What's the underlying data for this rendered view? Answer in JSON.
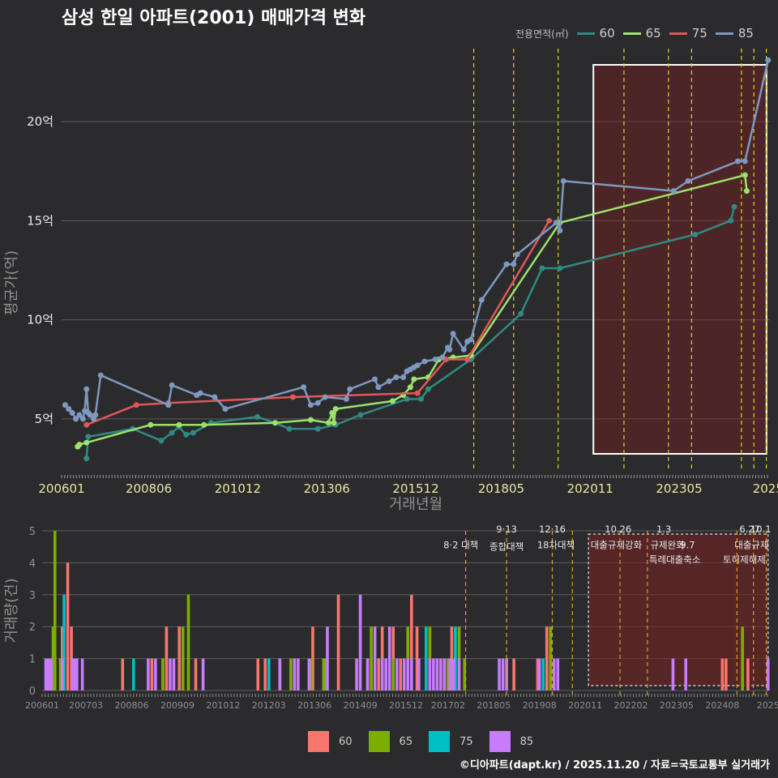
{
  "title": "삼성 한일 아파트(2001) 매매가격 변화",
  "footer": "©디아파트(dapt.kr) / 2025.11.20 / 자료=국토교통부 실거래가",
  "legend_top": {
    "title": "전용면적(㎡)",
    "items": [
      {
        "label": "60",
        "color": "#2f8a82"
      },
      {
        "label": "65",
        "color": "#9be36a"
      },
      {
        "label": "75",
        "color": "#e05757"
      },
      {
        "label": "85",
        "color": "#7e98c0"
      }
    ]
  },
  "legend_bottom": {
    "items": [
      {
        "label": "60",
        "color": "#f8766d"
      },
      {
        "label": "65",
        "color": "#7cae00"
      },
      {
        "label": "75",
        "color": "#00bfc4"
      },
      {
        "label": "85",
        "color": "#c77cff"
      }
    ]
  },
  "chart_data": [
    {
      "type": "line",
      "title": "삼성 한일 아파트(2001) 매매가격 변화",
      "xlabel": "거래년월",
      "ylabel": "평균가(억)",
      "xlim": [
        2006.0,
        2025.9
      ],
      "ylim": [
        2.5,
        24.5
      ],
      "x_ticks": [
        {
          "label": "200601",
          "value": 2006.0
        },
        {
          "label": "200806",
          "value": 2008.45
        },
        {
          "label": "201012",
          "value": 2010.95
        },
        {
          "label": "201306",
          "value": 2013.45
        },
        {
          "label": "201512",
          "value": 2015.95
        },
        {
          "label": "201805",
          "value": 2018.35
        },
        {
          "label": "202011",
          "value": 2020.85
        },
        {
          "label": "202305",
          "value": 2023.35
        },
        {
          "label": "2025",
          "value": 2025.85
        }
      ],
      "y_ticks": [
        {
          "label": "5억",
          "value": 5
        },
        {
          "label": "10억",
          "value": 10
        },
        {
          "label": "15억",
          "value": 15
        },
        {
          "label": "20억",
          "value": 20
        }
      ],
      "highlight_range": [
        2020.85,
        2025.85
      ],
      "policy_lines": [
        2017.58,
        2018.7,
        2019.95,
        2021.8,
        2023.05,
        2023.7,
        2025.1,
        2025.45,
        2025.8
      ],
      "series": [
        {
          "name": "60",
          "color": "#2f8a82",
          "x": [
            2006.7,
            2006.75,
            2008.0,
            2008.8,
            2009.1,
            2009.3,
            2009.5,
            2009.7,
            2010.2,
            2011.5,
            2012.0,
            2012.4,
            2013.2,
            2013.7,
            2014.4,
            2015.7,
            2016.1,
            2016.3,
            2017.5,
            2018.9,
            2019.5,
            2020.0,
            2023.8,
            2024.8,
            2024.9
          ],
          "y": [
            3.0,
            4.1,
            4.5,
            3.9,
            4.3,
            4.6,
            4.2,
            4.3,
            4.8,
            5.1,
            4.8,
            4.5,
            4.5,
            4.7,
            5.2,
            6.0,
            6.0,
            6.5,
            8.0,
            10.3,
            12.6,
            12.6,
            14.3,
            15.0,
            15.7
          ]
        },
        {
          "name": "65",
          "color": "#9be36a",
          "x": [
            2006.45,
            2006.5,
            2006.7,
            2008.5,
            2009.3,
            2010.0,
            2012.0,
            2013.0,
            2013.5,
            2013.6,
            2013.65,
            2013.7,
            2015.3,
            2015.6,
            2015.8,
            2015.9,
            2016.3,
            2016.6,
            2017.0,
            2017.5,
            2020.0,
            2025.2,
            2025.25
          ],
          "y": [
            3.6,
            3.7,
            3.8,
            4.7,
            4.7,
            4.7,
            4.8,
            4.95,
            4.8,
            5.3,
            4.8,
            5.5,
            5.9,
            6.2,
            6.6,
            7.0,
            7.1,
            8.0,
            8.1,
            8.2,
            14.9,
            17.3,
            16.5
          ]
        },
        {
          "name": "75",
          "color": "#e05757",
          "x": [
            2006.7,
            2008.1,
            2009.0,
            2012.5,
            2016.0,
            2016.8,
            2017.4,
            2019.7
          ],
          "y": [
            4.7,
            5.7,
            5.8,
            6.1,
            6.3,
            8.0,
            8.0,
            15.0
          ]
        },
        {
          "name": "85",
          "color": "#7e98c0",
          "x": [
            2006.1,
            2006.2,
            2006.3,
            2006.4,
            2006.5,
            2006.6,
            2006.65,
            2006.7,
            2006.75,
            2006.8,
            2006.9,
            2006.95,
            2007.1,
            2009.0,
            2009.1,
            2009.8,
            2009.9,
            2010.3,
            2010.6,
            2012.8,
            2013.0,
            2013.2,
            2013.4,
            2014.0,
            2014.1,
            2014.8,
            2014.9,
            2015.2,
            2015.4,
            2015.6,
            2015.7,
            2015.8,
            2015.9,
            2016.0,
            2016.2,
            2016.5,
            2016.7,
            2016.85,
            2016.9,
            2017.0,
            2017.3,
            2017.4,
            2017.5,
            2017.8,
            2018.5,
            2018.7,
            2018.8,
            2019.9,
            2020.0,
            2020.1,
            2023.2,
            2023.6,
            2025.0,
            2025.2,
            2025.85
          ],
          "y": [
            5.7,
            5.5,
            5.3,
            5.0,
            5.2,
            5.0,
            5.4,
            6.5,
            5.3,
            5.2,
            5.0,
            5.2,
            7.2,
            5.7,
            6.7,
            6.2,
            6.3,
            6.1,
            5.5,
            6.6,
            5.7,
            5.8,
            6.1,
            6.0,
            6.5,
            7.0,
            6.6,
            6.9,
            7.1,
            7.1,
            7.4,
            7.5,
            7.6,
            7.7,
            7.9,
            8.0,
            8.1,
            8.6,
            8.5,
            9.3,
            8.5,
            8.9,
            9.0,
            11.0,
            12.8,
            12.8,
            13.3,
            14.9,
            14.5,
            17.0,
            16.5,
            17.0,
            18.0,
            18.0,
            23.1
          ]
        }
      ]
    },
    {
      "type": "bar",
      "xlabel": "",
      "ylabel": "거래량(건)",
      "xlim": [
        2006.0,
        2025.9
      ],
      "ylim": [
        0,
        5
      ],
      "x_ticks": [
        {
          "label": "200601",
          "value": 2006.0
        },
        {
          "label": "200703",
          "value": 2007.2
        },
        {
          "label": "200806",
          "value": 2008.45
        },
        {
          "label": "200909",
          "value": 2009.7
        },
        {
          "label": "201012",
          "value": 2010.95
        },
        {
          "label": "201203",
          "value": 2012.2
        },
        {
          "label": "201306",
          "value": 2013.45
        },
        {
          "label": "201409",
          "value": 2014.7
        },
        {
          "label": "201512",
          "value": 2015.95
        },
        {
          "label": "201702",
          "value": 2017.1
        },
        {
          "label": "201805",
          "value": 2018.35
        },
        {
          "label": "201908",
          "value": 2019.6
        },
        {
          "label": "202011",
          "value": 2020.85
        },
        {
          "label": "202202",
          "value": 2022.1
        },
        {
          "label": "202305",
          "value": 2023.35
        },
        {
          "label": "202408",
          "value": 2024.6
        },
        {
          "label": "2025",
          "value": 2025.85
        }
      ],
      "y_ticks": [
        {
          "label": "0",
          "value": 0
        },
        {
          "label": "1",
          "value": 1
        },
        {
          "label": "2",
          "value": 2
        },
        {
          "label": "3",
          "value": 3
        },
        {
          "label": "4",
          "value": 4
        },
        {
          "label": "5",
          "value": 5
        }
      ],
      "highlight_range": [
        2020.85,
        2025.85
      ],
      "policy_lines": [
        2017.58,
        2018.7,
        2019.95,
        2020.5,
        2021.8,
        2022.55,
        2025.0,
        2025.45,
        2025.8
      ],
      "annotations": [
        {
          "text": "8·2 대책",
          "x": 2017.45,
          "y": 4.45
        },
        {
          "text": "9·13",
          "x": 2018.7,
          "y": 4.95
        },
        {
          "text": "종합대책",
          "x": 2018.7,
          "y": 4.4
        },
        {
          "text": "12·16",
          "x": 2019.95,
          "y": 4.95
        },
        {
          "text": "18차대책",
          "x": 2020.05,
          "y": 4.45
        },
        {
          "text": "10.26",
          "x": 2021.75,
          "y": 4.95
        },
        {
          "text": "대출규제강화",
          "x": 2021.7,
          "y": 4.45
        },
        {
          "text": "1.3",
          "x": 2023.0,
          "y": 4.95
        },
        {
          "text": "규제완화",
          "x": 2023.1,
          "y": 4.45
        },
        {
          "text": "9.7",
          "x": 2023.65,
          "y": 4.45
        },
        {
          "text": "특례대출축소",
          "x": 2023.3,
          "y": 4.0
        },
        {
          "text": "6.27",
          "x": 2025.35,
          "y": 4.95
        },
        {
          "text": "10.1",
          "x": 2025.65,
          "y": 4.95
        },
        {
          "text": "대출규제",
          "x": 2025.4,
          "y": 4.45
        },
        {
          "text": "토허제해제",
          "x": 2025.2,
          "y": 4.0
        }
      ],
      "series": [
        {
          "name": "60",
          "color": "#f8766d",
          "x": [
            2006.55,
            2006.7,
            2006.8,
            2008.2,
            2009.0,
            2009.4,
            2009.75,
            2009.85,
            2010.2,
            2011.9,
            2012.1,
            2012.5,
            2012.9,
            2013.4,
            2013.7,
            2014.1,
            2014.9,
            2015.2,
            2015.3,
            2015.6,
            2015.8,
            2016.1,
            2016.25,
            2016.5,
            2016.8,
            2017.0,
            2017.2,
            2018.9,
            2019.55,
            2019.8,
            2024.6,
            2024.7,
            2025.3
          ],
          "y": [
            2,
            4,
            2,
            1,
            1,
            2,
            2,
            1,
            1,
            1,
            1,
            1,
            1,
            2,
            1,
            3,
            1,
            1,
            2,
            2,
            1,
            3,
            2,
            1,
            1,
            1,
            2,
            1,
            1,
            2,
            1,
            1,
            1
          ]
        },
        {
          "name": "65",
          "color": "#7cae00",
          "x": [
            2006.3,
            2006.35,
            2006.5,
            2009.3,
            2009.85,
            2010.0,
            2012.8,
            2013.35,
            2013.7,
            2013.75,
            2015.0,
            2015.5,
            2015.6,
            2016.0,
            2016.6,
            2017.0,
            2017.1,
            2017.4,
            2017.55,
            2019.9,
            2025.15
          ],
          "y": [
            2,
            5,
            1,
            1,
            2,
            3,
            1,
            1,
            1,
            1,
            2,
            1,
            1,
            2,
            2,
            1,
            1,
            2,
            1,
            2,
            2
          ]
        },
        {
          "name": "75",
          "color": "#00bfc4",
          "x": [
            2006.6,
            2008.5,
            2012.2,
            2016.5,
            2017.3,
            2019.7
          ],
          "y": [
            3,
            1,
            1,
            2,
            2,
            1
          ]
        },
        {
          "name": "85",
          "color": "#c77cff",
          "x": [
            2006.1,
            2006.15,
            2006.2,
            2006.25,
            2006.55,
            2006.85,
            2006.9,
            2006.95,
            2007.1,
            2008.9,
            2009.1,
            2009.5,
            2009.6,
            2010.4,
            2012.5,
            2012.9,
            2013.0,
            2013.3,
            2013.8,
            2014.6,
            2014.7,
            2014.9,
            2015.1,
            2015.3,
            2015.4,
            2015.5,
            2015.7,
            2015.9,
            2016.0,
            2016.1,
            2016.3,
            2016.6,
            2016.7,
            2016.8,
            2016.9,
            2017.0,
            2017.15,
            2017.25,
            2017.4,
            2018.5,
            2018.6,
            2018.7,
            2019.6,
            2020.0,
            2020.1,
            2023.25,
            2023.6,
            2025.85
          ],
          "y": [
            1,
            1,
            1,
            1,
            1,
            1,
            1,
            1,
            1,
            1,
            1,
            1,
            1,
            1,
            1,
            1,
            1,
            1,
            2,
            1,
            3,
            1,
            2,
            1,
            1,
            2,
            1,
            1,
            1,
            1,
            1,
            1,
            1,
            1,
            1,
            1,
            1,
            1,
            1,
            1,
            1,
            1,
            1,
            1,
            1,
            1,
            1,
            1
          ]
        }
      ]
    }
  ]
}
